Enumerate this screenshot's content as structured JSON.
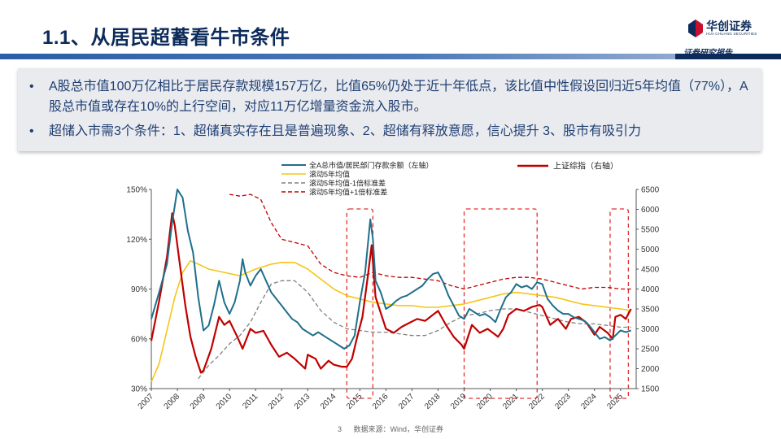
{
  "header": {
    "title": "1.1、从居民超蓄看牛市条件",
    "logo_name": "华创证券",
    "logo_sub": "HUA CHUANG SECURITIES",
    "tagline": "证券研究报告"
  },
  "summary": {
    "bullets": [
      "A股总市值100万亿相比于居民存款规模157万亿，比值65%仍处于近十年低点，该比值中性假设回归近5年均值（77%），A股总市值或存在10%的上行空间，对应11万亿增量资金流入股市。",
      "超储入市需3个条件：1、超储真实存在且是普遍现象、2、超储有释放意愿，信心提升 3、股市有吸引力"
    ]
  },
  "footer": {
    "page": "3",
    "source": "数据来源：Wind，华创证券"
  },
  "colors": {
    "ratio": "#1f6f8b",
    "ma5": "#f5c518",
    "lower": "#808080",
    "upper": "#c00000",
    "sh": "#c00000",
    "box": "#e03030",
    "brand": "#0d2b5a"
  },
  "chart_data": {
    "type": "line",
    "x_ticks": [
      "2007",
      "2008",
      "2009",
      "2010",
      "2011",
      "2012",
      "2013",
      "2014",
      "2015",
      "2016",
      "2017",
      "2018",
      "2019",
      "2020",
      "2021",
      "2022",
      "2023",
      "2024",
      "2025"
    ],
    "xlim": [
      2007.0,
      2025.6
    ],
    "ylim_left": [
      0.3,
      1.5
    ],
    "left_ticks": [
      "30%",
      "60%",
      "90%",
      "120%",
      "150%"
    ],
    "ylim_right": [
      1500,
      6500
    ],
    "right_ticks": [
      "1500",
      "2000",
      "2500",
      "3000",
      "3500",
      "4000",
      "4500",
      "5000",
      "5500",
      "6000",
      "6500"
    ],
    "legend": [
      {
        "key": "ratio",
        "label": "全A总市值/居民部门存款余额（左轴）",
        "style": "solid"
      },
      {
        "key": "ma5",
        "label": "滚动5年均值",
        "style": "solid"
      },
      {
        "key": "lower",
        "label": "滚动5年均值-1倍标准差",
        "style": "dashed"
      },
      {
        "key": "upper",
        "label": "滚动5年均值+1倍标准差",
        "style": "dashed"
      },
      {
        "key": "sh",
        "label": "上证综指（右轴）",
        "style": "solid"
      }
    ],
    "highlight_ranges": [
      [
        2014.5,
        2015.5
      ],
      [
        2019.0,
        2021.8
      ],
      [
        2024.6,
        2025.3
      ]
    ],
    "series": {
      "ratio": {
        "axis": "left",
        "points": [
          [
            2007.0,
            0.72
          ],
          [
            2007.3,
            0.88
          ],
          [
            2007.6,
            1.05
          ],
          [
            2007.8,
            1.3
          ],
          [
            2008.0,
            1.58
          ],
          [
            2008.2,
            1.45
          ],
          [
            2008.4,
            1.25
          ],
          [
            2008.6,
            1.12
          ],
          [
            2008.8,
            0.85
          ],
          [
            2009.0,
            0.65
          ],
          [
            2009.2,
            0.68
          ],
          [
            2009.4,
            0.8
          ],
          [
            2009.6,
            0.95
          ],
          [
            2009.8,
            0.82
          ],
          [
            2010.0,
            0.75
          ],
          [
            2010.2,
            0.82
          ],
          [
            2010.4,
            0.95
          ],
          [
            2010.5,
            1.08
          ],
          [
            2010.6,
            1.0
          ],
          [
            2010.8,
            0.92
          ],
          [
            2011.0,
            0.98
          ],
          [
            2011.2,
            1.02
          ],
          [
            2011.4,
            0.95
          ],
          [
            2011.6,
            0.88
          ],
          [
            2011.8,
            0.84
          ],
          [
            2012.0,
            0.8
          ],
          [
            2012.2,
            0.76
          ],
          [
            2012.4,
            0.72
          ],
          [
            2012.6,
            0.7
          ],
          [
            2012.8,
            0.66
          ],
          [
            2013.0,
            0.64
          ],
          [
            2013.2,
            0.62
          ],
          [
            2013.4,
            0.64
          ],
          [
            2013.6,
            0.62
          ],
          [
            2013.8,
            0.6
          ],
          [
            2014.0,
            0.58
          ],
          [
            2014.2,
            0.56
          ],
          [
            2014.4,
            0.54
          ],
          [
            2014.6,
            0.56
          ],
          [
            2014.8,
            0.62
          ],
          [
            2015.0,
            0.82
          ],
          [
            2015.2,
            1.0
          ],
          [
            2015.4,
            1.32
          ],
          [
            2015.5,
            1.2
          ],
          [
            2015.6,
            0.95
          ],
          [
            2015.8,
            0.88
          ],
          [
            2016.0,
            0.78
          ],
          [
            2016.2,
            0.8
          ],
          [
            2016.4,
            0.83
          ],
          [
            2016.6,
            0.85
          ],
          [
            2016.8,
            0.86
          ],
          [
            2017.0,
            0.88
          ],
          [
            2017.2,
            0.9
          ],
          [
            2017.4,
            0.92
          ],
          [
            2017.6,
            0.96
          ],
          [
            2017.8,
            0.99
          ],
          [
            2018.0,
            1.0
          ],
          [
            2018.2,
            0.94
          ],
          [
            2018.4,
            0.86
          ],
          [
            2018.6,
            0.8
          ],
          [
            2018.8,
            0.74
          ],
          [
            2019.0,
            0.72
          ],
          [
            2019.2,
            0.78
          ],
          [
            2019.4,
            0.76
          ],
          [
            2019.6,
            0.74
          ],
          [
            2019.8,
            0.75
          ],
          [
            2020.0,
            0.73
          ],
          [
            2020.2,
            0.7
          ],
          [
            2020.4,
            0.78
          ],
          [
            2020.6,
            0.85
          ],
          [
            2020.8,
            0.88
          ],
          [
            2021.0,
            0.93
          ],
          [
            2021.2,
            0.91
          ],
          [
            2021.4,
            0.92
          ],
          [
            2021.6,
            0.9
          ],
          [
            2021.8,
            0.94
          ],
          [
            2022.0,
            0.93
          ],
          [
            2022.2,
            0.84
          ],
          [
            2022.4,
            0.8
          ],
          [
            2022.6,
            0.77
          ],
          [
            2022.8,
            0.75
          ],
          [
            2023.0,
            0.75
          ],
          [
            2023.2,
            0.73
          ],
          [
            2023.4,
            0.72
          ],
          [
            2023.6,
            0.71
          ],
          [
            2023.8,
            0.68
          ],
          [
            2024.0,
            0.64
          ],
          [
            2024.2,
            0.6
          ],
          [
            2024.4,
            0.61
          ],
          [
            2024.6,
            0.59
          ],
          [
            2024.8,
            0.62
          ],
          [
            2025.0,
            0.65
          ],
          [
            2025.2,
            0.64
          ],
          [
            2025.4,
            0.65
          ]
        ]
      },
      "ma5": {
        "axis": "left",
        "points": [
          [
            2007.0,
            0.34
          ],
          [
            2007.3,
            0.45
          ],
          [
            2007.6,
            0.65
          ],
          [
            2007.9,
            0.85
          ],
          [
            2008.2,
            1.0
          ],
          [
            2008.5,
            1.07
          ],
          [
            2008.8,
            1.05
          ],
          [
            2009.2,
            1.02
          ],
          [
            2009.8,
            1.0
          ],
          [
            2010.4,
            0.98
          ],
          [
            2011.0,
            1.02
          ],
          [
            2011.6,
            1.05
          ],
          [
            2012.0,
            1.06
          ],
          [
            2012.5,
            1.06
          ],
          [
            2013.0,
            1.02
          ],
          [
            2013.5,
            0.96
          ],
          [
            2014.0,
            0.9
          ],
          [
            2014.5,
            0.86
          ],
          [
            2015.0,
            0.84
          ],
          [
            2015.5,
            0.82
          ],
          [
            2016.0,
            0.81
          ],
          [
            2016.5,
            0.8
          ],
          [
            2017.0,
            0.8
          ],
          [
            2017.5,
            0.79
          ],
          [
            2018.0,
            0.79
          ],
          [
            2018.5,
            0.8
          ],
          [
            2019.0,
            0.81
          ],
          [
            2019.5,
            0.83
          ],
          [
            2020.0,
            0.85
          ],
          [
            2020.5,
            0.87
          ],
          [
            2021.0,
            0.88
          ],
          [
            2021.5,
            0.87
          ],
          [
            2022.0,
            0.86
          ],
          [
            2022.5,
            0.85
          ],
          [
            2023.0,
            0.83
          ],
          [
            2023.5,
            0.81
          ],
          [
            2024.0,
            0.8
          ],
          [
            2024.5,
            0.79
          ],
          [
            2025.0,
            0.78
          ],
          [
            2025.4,
            0.77
          ]
        ]
      },
      "lower": {
        "axis": "left",
        "points": [
          [
            2008.8,
            0.36
          ],
          [
            2009.2,
            0.44
          ],
          [
            2009.6,
            0.5
          ],
          [
            2010.0,
            0.57
          ],
          [
            2010.4,
            0.62
          ],
          [
            2010.8,
            0.7
          ],
          [
            2011.2,
            0.82
          ],
          [
            2011.6,
            0.93
          ],
          [
            2012.0,
            0.95
          ],
          [
            2012.5,
            0.95
          ],
          [
            2013.0,
            0.88
          ],
          [
            2013.5,
            0.77
          ],
          [
            2014.0,
            0.7
          ],
          [
            2014.5,
            0.66
          ],
          [
            2015.0,
            0.65
          ],
          [
            2015.5,
            0.64
          ],
          [
            2016.0,
            0.64
          ],
          [
            2016.5,
            0.63
          ],
          [
            2017.0,
            0.62
          ],
          [
            2017.5,
            0.62
          ],
          [
            2018.0,
            0.65
          ],
          [
            2018.5,
            0.7
          ],
          [
            2019.0,
            0.74
          ],
          [
            2019.5,
            0.75
          ],
          [
            2020.0,
            0.77
          ],
          [
            2020.5,
            0.78
          ],
          [
            2021.0,
            0.78
          ],
          [
            2021.5,
            0.76
          ],
          [
            2022.0,
            0.74
          ],
          [
            2022.5,
            0.72
          ],
          [
            2023.0,
            0.7
          ],
          [
            2023.5,
            0.69
          ],
          [
            2024.0,
            0.69
          ],
          [
            2024.5,
            0.68
          ],
          [
            2025.0,
            0.67
          ],
          [
            2025.4,
            0.67
          ]
        ]
      },
      "upper": {
        "axis": "left",
        "points": [
          [
            2010.0,
            1.47
          ],
          [
            2010.4,
            1.46
          ],
          [
            2010.8,
            1.47
          ],
          [
            2011.2,
            1.44
          ],
          [
            2011.6,
            1.3
          ],
          [
            2012.0,
            1.2
          ],
          [
            2012.5,
            1.18
          ],
          [
            2013.0,
            1.16
          ],
          [
            2013.5,
            1.05
          ],
          [
            2014.0,
            1.0
          ],
          [
            2014.5,
            0.98
          ],
          [
            2015.0,
            0.97
          ],
          [
            2015.5,
            1.0
          ],
          [
            2016.0,
            0.98
          ],
          [
            2016.5,
            0.97
          ],
          [
            2017.0,
            0.97
          ],
          [
            2017.5,
            0.96
          ],
          [
            2018.0,
            0.95
          ],
          [
            2018.5,
            0.92
          ],
          [
            2019.0,
            0.9
          ],
          [
            2019.5,
            0.92
          ],
          [
            2020.0,
            0.94
          ],
          [
            2020.5,
            0.96
          ],
          [
            2021.0,
            0.97
          ],
          [
            2021.5,
            0.97
          ],
          [
            2022.0,
            0.96
          ],
          [
            2022.5,
            0.94
          ],
          [
            2023.0,
            0.92
          ],
          [
            2023.5,
            0.9
          ],
          [
            2024.0,
            0.91
          ],
          [
            2024.5,
            0.91
          ],
          [
            2025.0,
            0.9
          ],
          [
            2025.4,
            0.9
          ]
        ]
      },
      "sh": {
        "axis": "right",
        "points": [
          [
            2007.0,
            2700
          ],
          [
            2007.3,
            3700
          ],
          [
            2007.6,
            4800
          ],
          [
            2007.8,
            5900
          ],
          [
            2007.9,
            5600
          ],
          [
            2008.1,
            4600
          ],
          [
            2008.3,
            3600
          ],
          [
            2008.5,
            2800
          ],
          [
            2008.7,
            2300
          ],
          [
            2008.9,
            1900
          ],
          [
            2009.0,
            1950
          ],
          [
            2009.3,
            2500
          ],
          [
            2009.6,
            3300
          ],
          [
            2009.8,
            3100
          ],
          [
            2010.0,
            3200
          ],
          [
            2010.3,
            2800
          ],
          [
            2010.5,
            2500
          ],
          [
            2010.8,
            3000
          ],
          [
            2011.0,
            2900
          ],
          [
            2011.3,
            2950
          ],
          [
            2011.6,
            2600
          ],
          [
            2011.9,
            2300
          ],
          [
            2012.2,
            2400
          ],
          [
            2012.5,
            2250
          ],
          [
            2012.9,
            2000
          ],
          [
            2013.0,
            2350
          ],
          [
            2013.3,
            2250
          ],
          [
            2013.5,
            2000
          ],
          [
            2013.8,
            2200
          ],
          [
            2014.0,
            2100
          ],
          [
            2014.3,
            2050
          ],
          [
            2014.5,
            2050
          ],
          [
            2014.7,
            2250
          ],
          [
            2014.9,
            2800
          ],
          [
            2015.1,
            3300
          ],
          [
            2015.3,
            4300
          ],
          [
            2015.45,
            5100
          ],
          [
            2015.6,
            3800
          ],
          [
            2015.8,
            3400
          ],
          [
            2016.0,
            3000
          ],
          [
            2016.3,
            2900
          ],
          [
            2016.6,
            3050
          ],
          [
            2016.9,
            3150
          ],
          [
            2017.2,
            3250
          ],
          [
            2017.5,
            3200
          ],
          [
            2017.8,
            3350
          ],
          [
            2018.0,
            3450
          ],
          [
            2018.3,
            3100
          ],
          [
            2018.6,
            2800
          ],
          [
            2018.9,
            2600
          ],
          [
            2019.0,
            2500
          ],
          [
            2019.3,
            3100
          ],
          [
            2019.6,
            2900
          ],
          [
            2019.9,
            3000
          ],
          [
            2020.1,
            2900
          ],
          [
            2020.3,
            2800
          ],
          [
            2020.5,
            3000
          ],
          [
            2020.7,
            3350
          ],
          [
            2021.0,
            3500
          ],
          [
            2021.3,
            3450
          ],
          [
            2021.6,
            3550
          ],
          [
            2021.9,
            3600
          ],
          [
            2022.0,
            3550
          ],
          [
            2022.3,
            3100
          ],
          [
            2022.6,
            3250
          ],
          [
            2022.9,
            3000
          ],
          [
            2023.1,
            3250
          ],
          [
            2023.4,
            3300
          ],
          [
            2023.7,
            3150
          ],
          [
            2024.0,
            2850
          ],
          [
            2024.2,
            3050
          ],
          [
            2024.5,
            2900
          ],
          [
            2024.7,
            2750
          ],
          [
            2024.8,
            3300
          ],
          [
            2025.0,
            3350
          ],
          [
            2025.2,
            3250
          ],
          [
            2025.4,
            3500
          ]
        ]
      }
    }
  }
}
